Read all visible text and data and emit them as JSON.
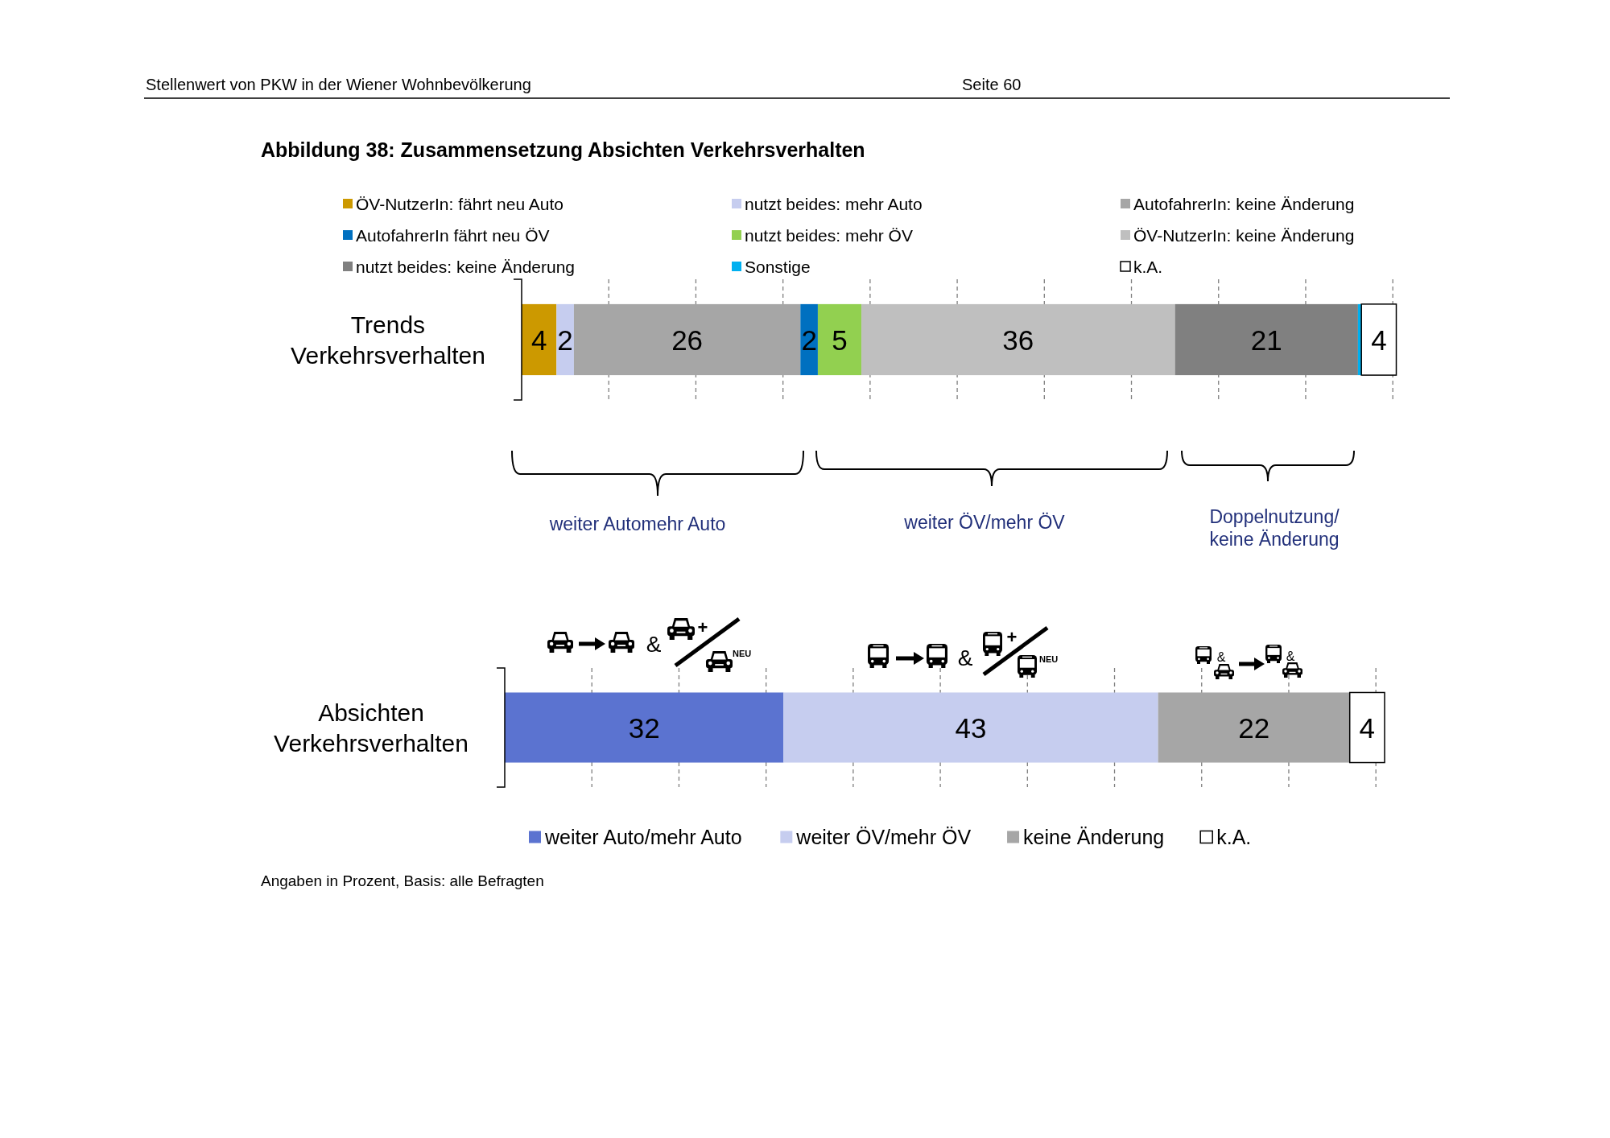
{
  "chart_data": [
    {
      "type": "bar",
      "orientation": "horizontal",
      "stacked": true,
      "title": "Abbildung 38: Zusammensetzung Absichten Verkehrsverhalten",
      "categories": [
        "Trends Verkehrsverhalten"
      ],
      "series": [
        {
          "name": "ÖV-NutzerIn: fährt neu Auto",
          "color": "#cc9900",
          "values": [
            4
          ],
          "value_labels": [
            "4"
          ]
        },
        {
          "name": "nutzt beides: mehr Auto",
          "color": "#c6cdef",
          "values": [
            2
          ],
          "value_labels": [
            "2"
          ]
        },
        {
          "name": "AutofahrerIn: keine Änderung",
          "color": "#a6a6a6",
          "values": [
            26
          ],
          "value_labels": [
            "26"
          ]
        },
        {
          "name": "AutofahrerIn fährt neu ÖV",
          "color": "#0070c0",
          "values": [
            2
          ],
          "value_labels": [
            "2"
          ]
        },
        {
          "name": "nutzt beides: mehr ÖV",
          "color": "#92d050",
          "values": [
            5
          ],
          "value_labels": [
            "5"
          ]
        },
        {
          "name": "ÖV-NutzerIn: keine Änderung",
          "color": "#bfbfbf",
          "values": [
            36
          ],
          "value_labels": [
            "36"
          ]
        },
        {
          "name": "nutzt beides: keine Änderung",
          "color": "#808080",
          "values": [
            21
          ],
          "value_labels": [
            "21"
          ]
        },
        {
          "name": "Sonstige",
          "color": "#00b0f0",
          "values": [
            0.4
          ],
          "value_labels": [
            null
          ]
        },
        {
          "name": "k.A.",
          "color": "#ffffff",
          "values": [
            4
          ],
          "value_labels": [
            "4"
          ]
        }
      ],
      "xlim": [
        0,
        101
      ],
      "xticks": [
        {
          "value": 10,
          "label": null
        },
        {
          "value": 20,
          "label": null
        },
        {
          "value": 30,
          "label": null
        },
        {
          "value": 40,
          "label": null
        },
        {
          "value": 50,
          "label": null
        },
        {
          "value": 60,
          "label": null
        },
        {
          "value": 70,
          "label": null
        },
        {
          "value": 80,
          "label": null
        },
        {
          "value": 90,
          "label": null
        },
        {
          "value": 100,
          "label": null
        }
      ],
      "grid": "x",
      "tick_labels": "y",
      "legend": "top",
      "annotations": [
        "Stellenwert von PKW in der Wiener Wohnbevölkerung",
        "Seite 60",
        "weiter Automehr Auto",
        "weiter ÖV/mehr ÖV",
        "Doppelnutzung/ keine Änderung"
      ]
    },
    {
      "type": "bar",
      "orientation": "horizontal",
      "stacked": true,
      "categories": [
        "Absichten Verkehrsverhalten"
      ],
      "series": [
        {
          "name": "weiter Auto/mehr Auto",
          "color": "#5b73d0",
          "values": [
            32
          ]
        },
        {
          "name": "weiter ÖV/mehr ÖV",
          "color": "#c6cdef",
          "values": [
            43
          ]
        },
        {
          "name": "keine Änderung",
          "color": "#a6a6a6",
          "values": [
            22
          ]
        },
        {
          "name": "k.A.",
          "color": "#ffffff",
          "values": [
            4
          ]
        }
      ],
      "xlim": [
        0,
        101
      ],
      "xticks": [
        {
          "value": 10,
          "label": null
        },
        {
          "value": 20,
          "label": null
        },
        {
          "value": 30,
          "label": null
        },
        {
          "value": 40,
          "label": null
        },
        {
          "value": 50,
          "label": null
        },
        {
          "value": 60,
          "label": null
        },
        {
          "value": 70,
          "label": null
        },
        {
          "value": 80,
          "label": null
        },
        {
          "value": 90,
          "label": null
        },
        {
          "value": 100,
          "label": null
        }
      ],
      "grid": "x",
      "tick_labels": "y",
      "legend": "bottom",
      "data_labels": true,
      "annotations": [
        "Angaben in Prozent, Basis: alle Befragten",
        "&",
        "+",
        "NEU",
        "&",
        "+",
        "NEU",
        "&",
        "&"
      ]
    }
  ]
}
